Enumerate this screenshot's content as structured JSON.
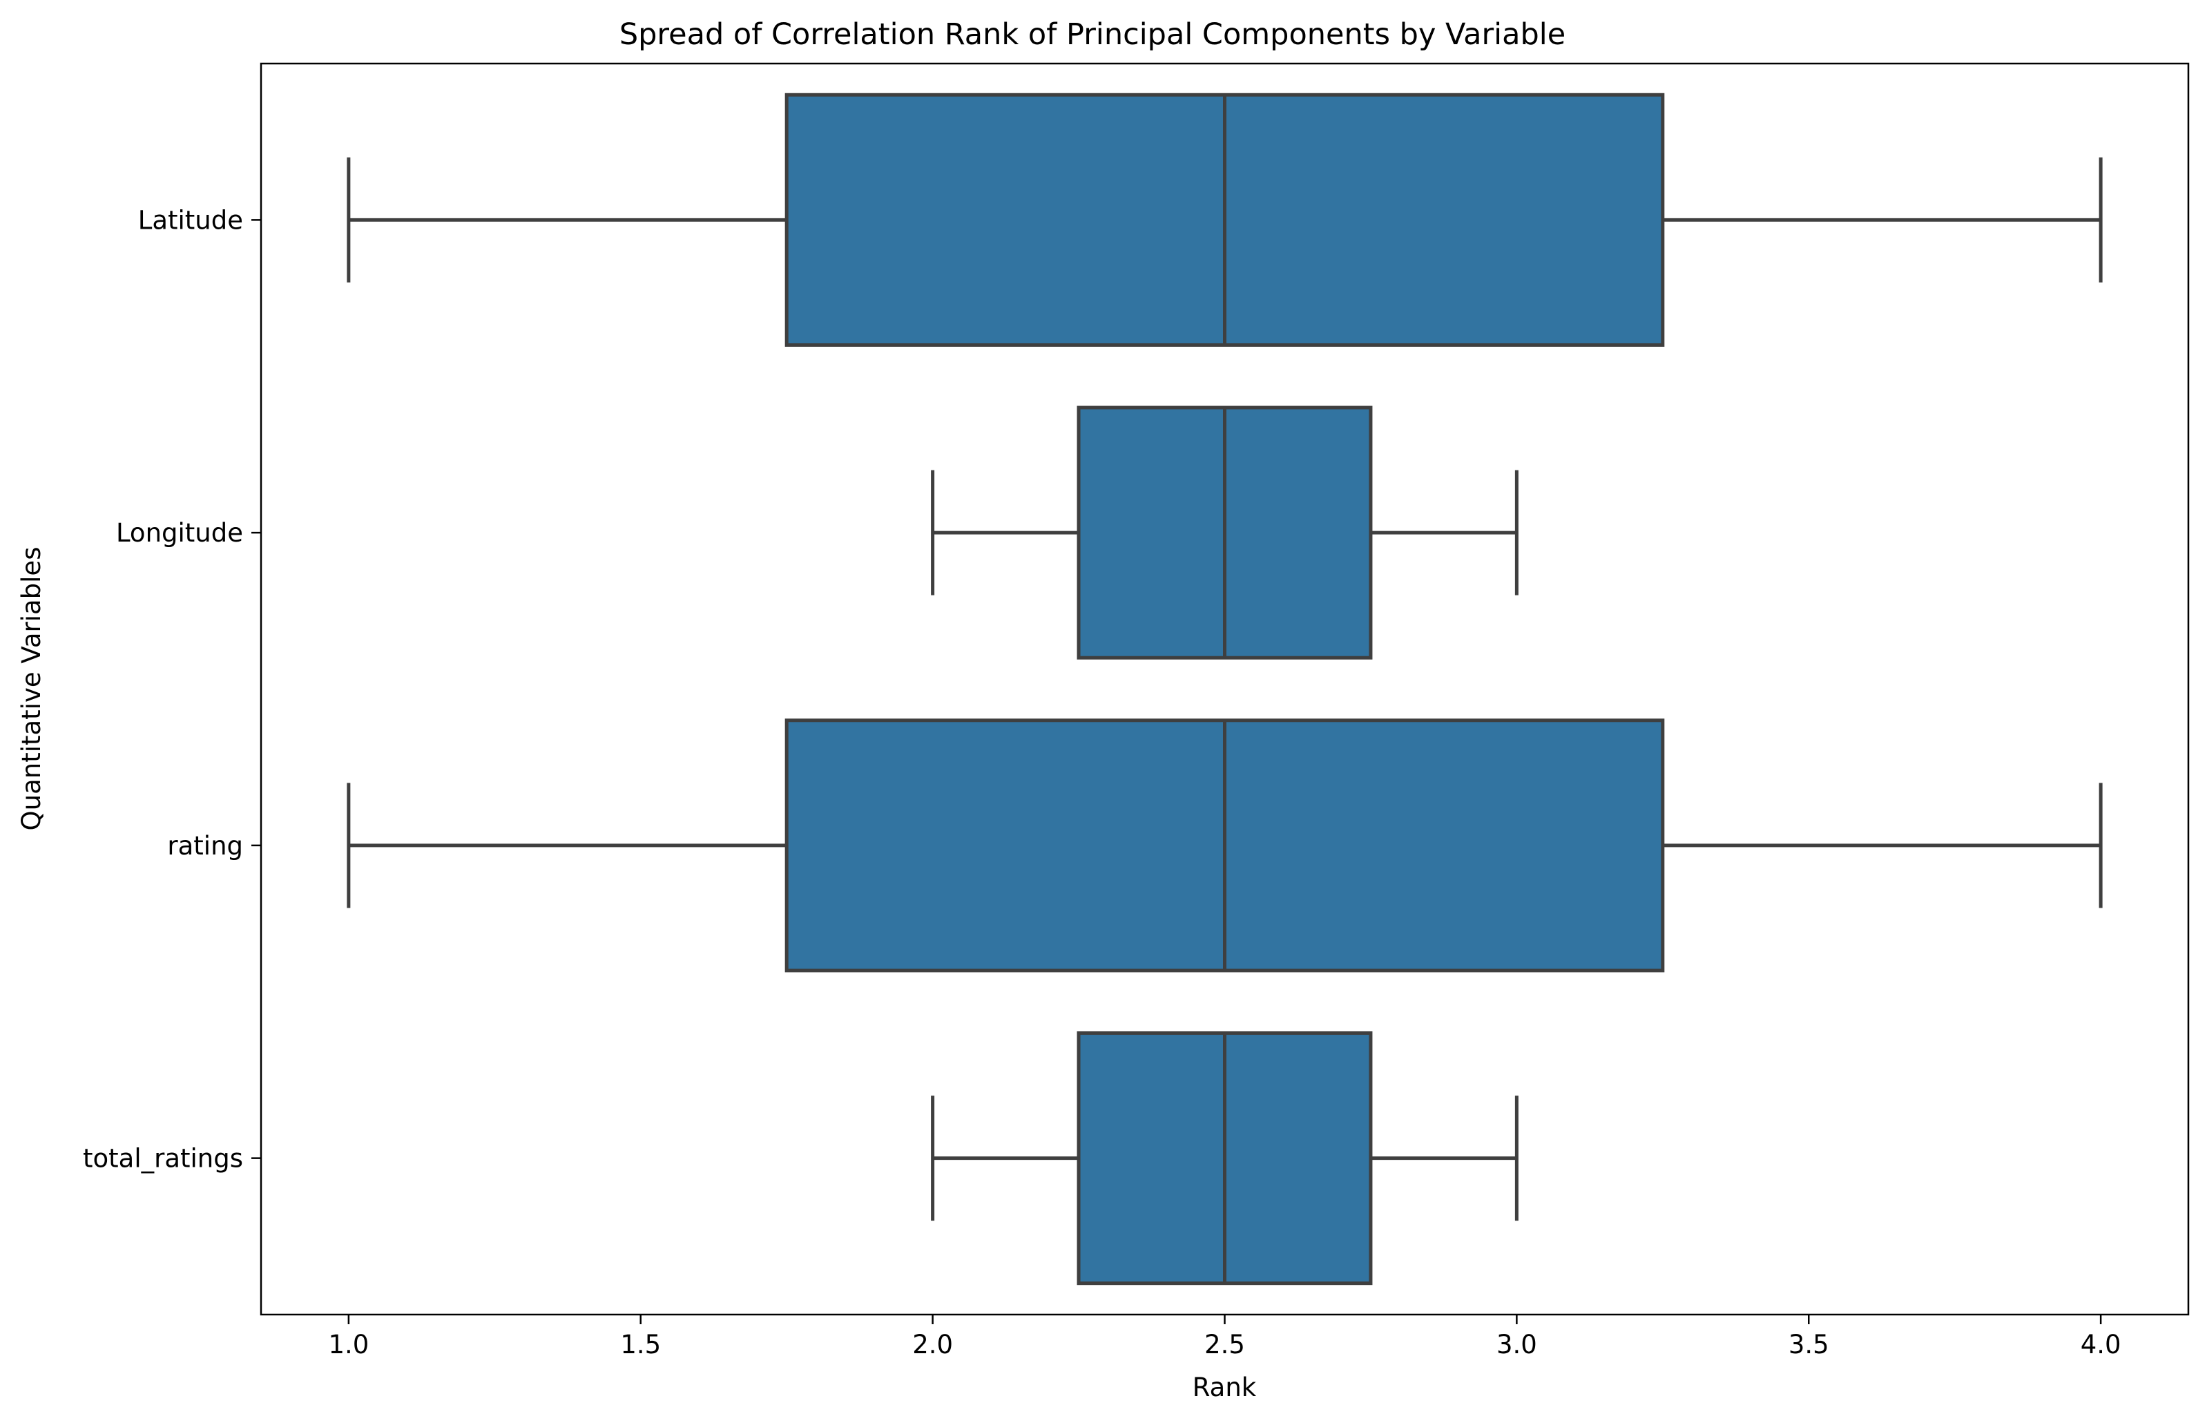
{
  "chart_data": {
    "type": "box",
    "orientation": "horizontal",
    "title": "Spread of Correlation Rank of Principal Components by Variable",
    "xlabel": "Rank",
    "ylabel": "Quantitative Variables",
    "xlim": [
      0.85,
      4.15
    ],
    "x_ticks": [
      1.0,
      1.5,
      2.0,
      2.5,
      3.0,
      3.5,
      4.0
    ],
    "x_tick_labels": [
      "1.0",
      "1.5",
      "2.0",
      "2.5",
      "3.0",
      "3.5",
      "4.0"
    ],
    "grid": false,
    "legend": "none",
    "categories": [
      "Latitude",
      "Longitude",
      "rating",
      "total_ratings"
    ],
    "boxes": [
      {
        "name": "Latitude",
        "whislo": 1.0,
        "q1": 1.75,
        "med": 2.5,
        "q3": 3.25,
        "whishi": 4.0
      },
      {
        "name": "Longitude",
        "whislo": 2.0,
        "q1": 2.25,
        "med": 2.5,
        "q3": 2.75,
        "whishi": 3.0
      },
      {
        "name": "rating",
        "whislo": 1.0,
        "q1": 1.75,
        "med": 2.5,
        "q3": 3.25,
        "whishi": 4.0
      },
      {
        "name": "total_ratings",
        "whislo": 2.0,
        "q1": 2.25,
        "med": 2.5,
        "q3": 2.75,
        "whishi": 3.0
      }
    ],
    "colors": {
      "box_fill": "#3274a1",
      "line": "#3f3f3f",
      "axes": "#000000"
    }
  }
}
